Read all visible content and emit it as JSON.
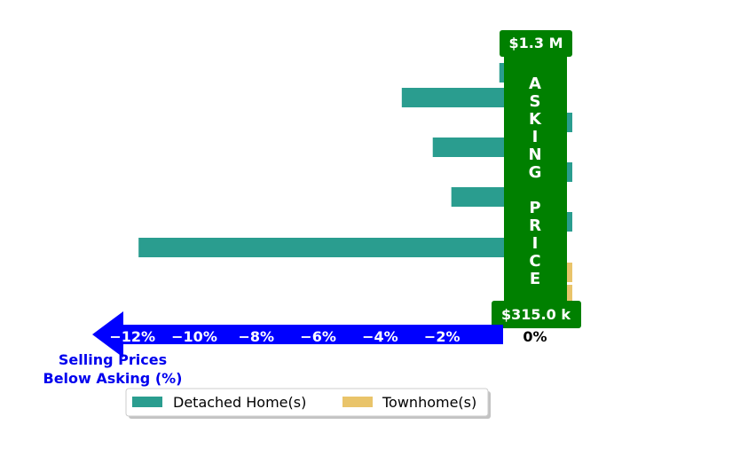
{
  "chart_data": {
    "type": "bar",
    "orientation": "horizontal",
    "series": [
      {
        "name": "Detached Home(s)",
        "color": "#2a9d8f",
        "values": [
          -0.15,
          -3.3,
          0.1,
          -2.3,
          0.1,
          -1.7,
          0.1,
          -11.8
        ]
      },
      {
        "name": "Townhome(s)",
        "color": "#e9c46a",
        "values": [
          0.1,
          0.1
        ]
      }
    ],
    "xlim": [
      -12.5,
      0
    ],
    "ticks": [
      {
        "value": -12,
        "label": "−12%"
      },
      {
        "value": -10,
        "label": "−10%"
      },
      {
        "value": -8,
        "label": "−8%"
      },
      {
        "value": -6,
        "label": "−6%"
      },
      {
        "value": -4,
        "label": "−4%"
      },
      {
        "value": -2,
        "label": "−2%"
      }
    ],
    "zero_label": "0%",
    "xlabel": [
      "Selling Prices",
      "Below Asking (%)"
    ],
    "asking_price": {
      "text": "ASKING PRICE",
      "top_label": "$1.3 M",
      "bottom_label": "$315.0 k",
      "color": "#008000"
    },
    "axis_arrow_color": "#0000ff",
    "legend_position": "bottom-center",
    "grid": false
  }
}
